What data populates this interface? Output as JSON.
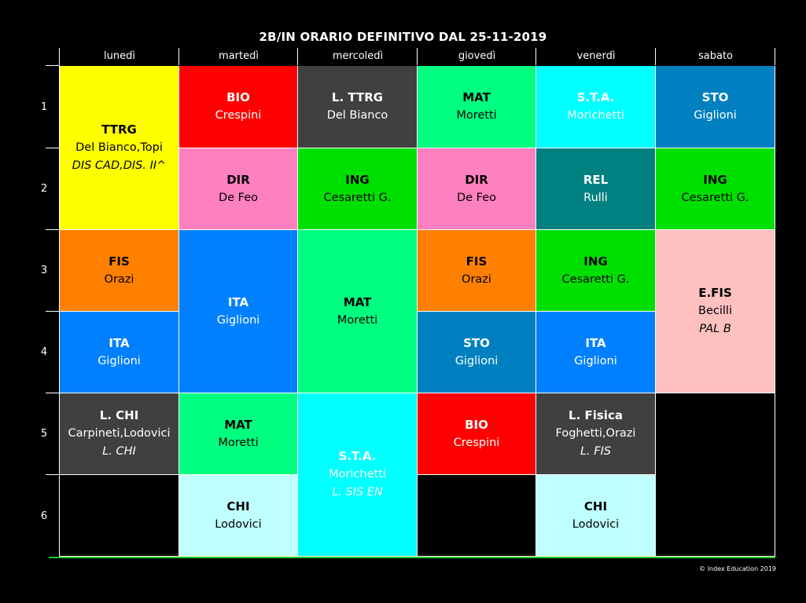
{
  "title": "2B/IN ORARIO DEFINITIVO DAL 25-11-2019",
  "days": [
    "lunedì",
    "martedì",
    "mercoledì",
    "giovedì",
    "venerdì",
    "sabato"
  ],
  "periods": [
    "1",
    "2",
    "3",
    "4",
    "5",
    "6"
  ],
  "cells": [
    {
      "subject": "TTRG",
      "teacher": "Del Bianco,Topi",
      "room": "DIS CAD,DIS. II^",
      "bg": "#ffff00",
      "fg": "#000000"
    },
    {
      "subject": "FIS",
      "teacher": "Orazi",
      "room": "",
      "bg": "#ff8000",
      "fg": "#000000"
    },
    {
      "subject": "ITA",
      "teacher": "Giglioni",
      "room": "",
      "bg": "#0080ff",
      "fg": "#ffffff"
    },
    {
      "subject": "L. CHI",
      "teacher": "Carpineti,Lodovici",
      "room": "L. CHI",
      "bg": "#404040",
      "fg": "#ffffff"
    },
    {
      "subject": "BIO",
      "teacher": "Crespini",
      "room": "",
      "bg": "#ff0000",
      "fg": "#ffffff"
    },
    {
      "subject": "DIR",
      "teacher": "De Feo",
      "room": "",
      "bg": "#ff80c0",
      "fg": "#000000"
    },
    {
      "subject": "ITA",
      "teacher": "Giglioni",
      "room": "",
      "bg": "#0080ff",
      "fg": "#ffffff"
    },
    {
      "subject": "MAT",
      "teacher": "Moretti",
      "room": "",
      "bg": "#00ff80",
      "fg": "#000000"
    },
    {
      "subject": "CHI",
      "teacher": "Lodovici",
      "room": "",
      "bg": "#c0ffff",
      "fg": "#000000"
    },
    {
      "subject": "L. TTRG",
      "teacher": "Del Bianco",
      "room": "",
      "bg": "#404040",
      "fg": "#ffffff"
    },
    {
      "subject": "ING",
      "teacher": "Cesaretti G.",
      "room": "",
      "bg": "#00e000",
      "fg": "#000000"
    },
    {
      "subject": "MAT",
      "teacher": "Moretti",
      "room": "",
      "bg": "#00ff80",
      "fg": "#000000"
    },
    {
      "subject": "S.T.A.",
      "teacher": "Morichetti",
      "room": "L. SIS EN",
      "bg": "#00ffff",
      "fg": "#ffffff"
    },
    {
      "subject": "MAT",
      "teacher": "Moretti",
      "room": "",
      "bg": "#00ff80",
      "fg": "#000000"
    },
    {
      "subject": "DIR",
      "teacher": "De Feo",
      "room": "",
      "bg": "#ff80c0",
      "fg": "#000000"
    },
    {
      "subject": "FIS",
      "teacher": "Orazi",
      "room": "",
      "bg": "#ff8000",
      "fg": "#000000"
    },
    {
      "subject": "STO",
      "teacher": "Giglioni",
      "room": "",
      "bg": "#0080c0",
      "fg": "#ffffff"
    },
    {
      "subject": "BIO",
      "teacher": "Crespini",
      "room": "",
      "bg": "#ff0000",
      "fg": "#ffffff"
    },
    {
      "subject": "S.T.A.",
      "teacher": "Morichetti",
      "room": "",
      "bg": "#00ffff",
      "fg": "#ffffff"
    },
    {
      "subject": "REL",
      "teacher": "Rulli",
      "room": "",
      "bg": "#008080",
      "fg": "#ffffff"
    },
    {
      "subject": "ING",
      "teacher": "Cesaretti G.",
      "room": "",
      "bg": "#00e000",
      "fg": "#000000"
    },
    {
      "subject": "ITA",
      "teacher": "Giglioni",
      "room": "",
      "bg": "#0080ff",
      "fg": "#ffffff"
    },
    {
      "subject": "L. Fisica",
      "teacher": "Foghetti,Orazi",
      "room": "L. FIS",
      "bg": "#404040",
      "fg": "#ffffff"
    },
    {
      "subject": "CHI",
      "teacher": "Lodovici",
      "room": "",
      "bg": "#c0ffff",
      "fg": "#000000"
    },
    {
      "subject": "STO",
      "teacher": "Giglioni",
      "room": "",
      "bg": "#0080c0",
      "fg": "#ffffff"
    },
    {
      "subject": "ING",
      "teacher": "Cesaretti G.",
      "room": "",
      "bg": "#00e000",
      "fg": "#000000"
    },
    {
      "subject": "E.FIS",
      "teacher": "Becilli",
      "room": "PAL B",
      "bg": "#ffc0c0",
      "fg": "#000000"
    }
  ],
  "copyright": "© Index Education 2019"
}
